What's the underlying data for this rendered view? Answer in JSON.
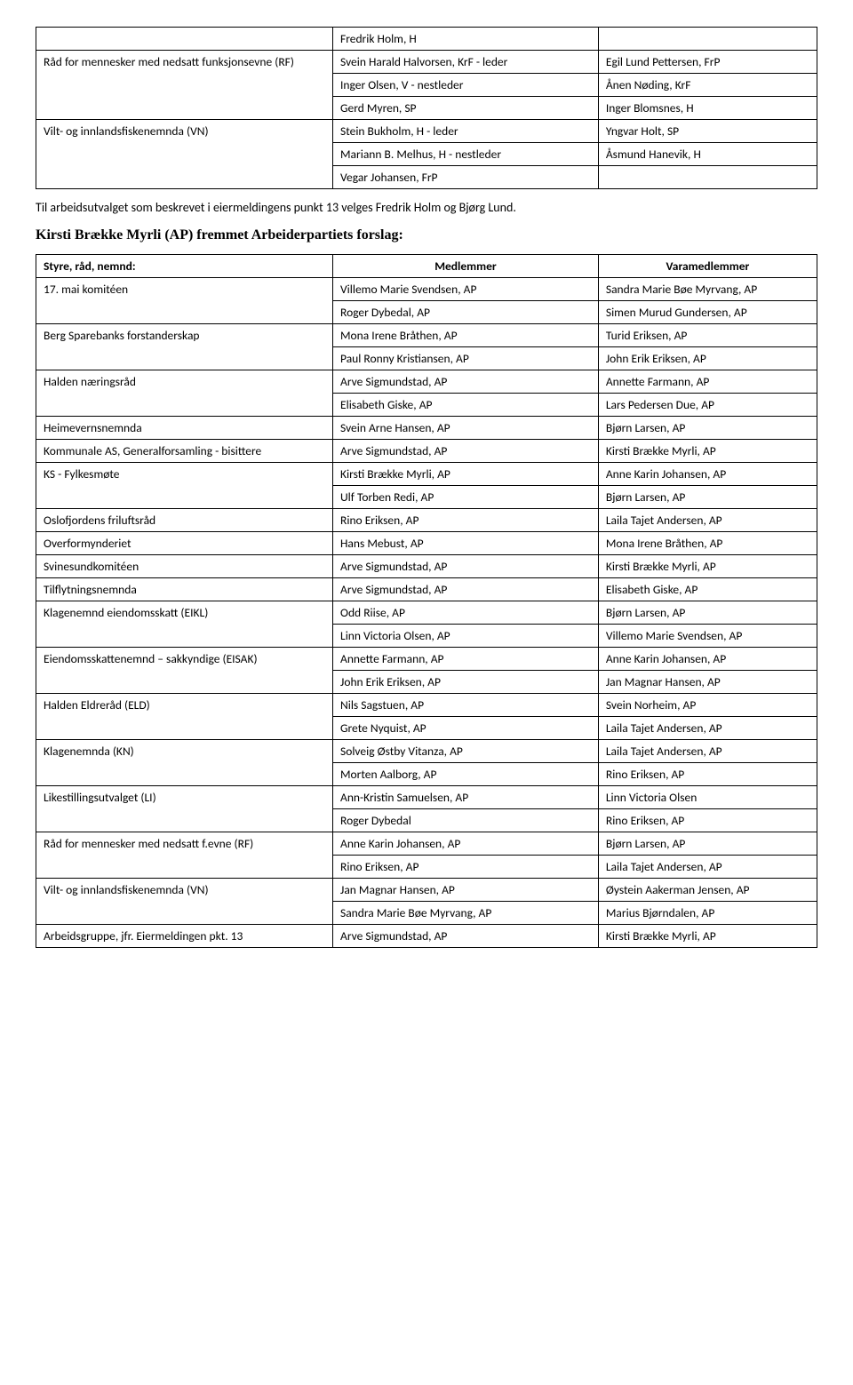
{
  "table1": {
    "rows": [
      {
        "c1": "",
        "c2": "Fredrik Holm, H",
        "c3": ""
      },
      {
        "c1": "Råd for mennesker med nedsatt funksjonsevne (RF)",
        "c1rows": 3,
        "c2": "Svein Harald Halvorsen, KrF - leder",
        "c3": "Egil Lund Pettersen, FrP"
      },
      {
        "c2": "Inger Olsen, V - nestleder",
        "c3": "Ånen Nøding, KrF"
      },
      {
        "c2": "Gerd Myren, SP",
        "c3": "Inger Blomsnes, H"
      },
      {
        "c1": "Vilt- og innlandsfiskenemnda (VN)",
        "c1rows": 3,
        "c2": "Stein Bukholm, H - leder",
        "c3": "Yngvar Holt, SP"
      },
      {
        "c2": "Mariann B. Melhus, H - nestleder",
        "c3": "Åsmund Hanevik, H"
      },
      {
        "c2": "Vegar Johansen, FrP",
        "c3": ""
      }
    ]
  },
  "midText": "Til arbeidsutvalget som beskrevet i eiermeldingens punkt 13 velges Fredrik Holm og Bjørg Lund.",
  "heading": "Kirsti Brække Myrli (AP) fremmet Arbeiderpartiets forslag:",
  "table2": {
    "header": {
      "c1": "Styre, råd, nemnd:",
      "c2": "Medlemmer",
      "c3": "Varamedlemmer"
    },
    "rows": [
      {
        "c1": "17. mai komitéen",
        "c1rows": 2,
        "c2": "Villemo Marie Svendsen, AP",
        "c3": "Sandra Marie Bøe Myrvang, AP"
      },
      {
        "c2": "Roger Dybedal, AP",
        "c3": "Simen Murud Gundersen, AP"
      },
      {
        "c1": "Berg Sparebanks forstanderskap",
        "c1rows": 2,
        "c2": "Mona Irene Bråthen, AP",
        "c3": "Turid Eriksen, AP"
      },
      {
        "c2": "Paul Ronny Kristiansen, AP",
        "c3": "John Erik Eriksen, AP"
      },
      {
        "c1": "Halden næringsråd",
        "c1rows": 2,
        "c2": "Arve Sigmundstad, AP",
        "c3": "Annette Farmann, AP"
      },
      {
        "c2": "Elisabeth Giske, AP",
        "c3": "Lars Pedersen Due, AP"
      },
      {
        "c1": "Heimevernsnemnda",
        "c2": "Svein Arne Hansen, AP",
        "c3": "Bjørn Larsen, AP"
      },
      {
        "c1": "Kommunale AS, Generalforsamling - bisittere",
        "c2": "Arve Sigmundstad, AP",
        "c3": "Kirsti Brække Myrli, AP"
      },
      {
        "c1": "KS - Fylkesmøte",
        "c1rows": 2,
        "c2": "Kirsti Brække Myrli, AP",
        "c3": "Anne Karin Johansen, AP"
      },
      {
        "c2": "Ulf Torben Redi, AP",
        "c3": "Bjørn Larsen, AP"
      },
      {
        "c1": "Oslofjordens friluftsråd",
        "c2": "Rino Eriksen, AP",
        "c3": "Laila Tajet Andersen, AP"
      },
      {
        "c1": "Overformynderiet",
        "c2": "Hans Mebust, AP",
        "c3": "Mona Irene Bråthen, AP"
      },
      {
        "c1": "Svinesundkomitéen",
        "c2": "Arve Sigmundstad, AP",
        "c3": "Kirsti Brække Myrli, AP"
      },
      {
        "c1": "Tilflytningsnemnda",
        "c2": "Arve Sigmundstad, AP",
        "c3": "Elisabeth Giske, AP"
      },
      {
        "c1": "Klagenemnd eiendomsskatt (EIKL)",
        "c1rows": 2,
        "c2": "Odd Riise, AP",
        "c3": "Bjørn Larsen, AP"
      },
      {
        "c2": "Linn Victoria Olsen, AP",
        "c3": "Villemo Marie Svendsen, AP"
      },
      {
        "c1": "Eiendomsskattenemnd – sakkyndige (EISAK)",
        "c1rows": 2,
        "c2": "Annette Farmann, AP",
        "c3": "Anne Karin Johansen, AP"
      },
      {
        "c2": "John Erik Eriksen, AP",
        "c3": "Jan Magnar Hansen, AP"
      },
      {
        "c1": "Halden Eldreråd (ELD)",
        "c1rows": 2,
        "c2": "Nils Sagstuen, AP",
        "c3": "Svein Norheim, AP"
      },
      {
        "c2": "Grete Nyquist, AP",
        "c3": "Laila Tajet Andersen, AP"
      },
      {
        "c1": "Klagenemnda (KN)",
        "c1rows": 2,
        "c2": "Solveig Østby Vitanza, AP",
        "c3": "Laila Tajet Andersen, AP"
      },
      {
        "c2": "Morten Aalborg, AP",
        "c3": "Rino Eriksen, AP"
      },
      {
        "c1": "Likestillingsutvalget (LI)",
        "c1rows": 2,
        "c2": "Ann-Kristin Samuelsen, AP",
        "c3": "Linn Victoria Olsen"
      },
      {
        "c2": "Roger Dybedal",
        "c3": "Rino Eriksen, AP"
      },
      {
        "c1": "Råd for mennesker med nedsatt f.evne (RF)",
        "c1rows": 2,
        "c2": "Anne Karin Johansen, AP",
        "c3": "Bjørn Larsen, AP"
      },
      {
        "c2": "Rino Eriksen, AP",
        "c3": "Laila Tajet Andersen, AP"
      },
      {
        "c1": "Vilt- og innlandsfiskenemnda (VN)",
        "c1rows": 2,
        "c2": "Jan Magnar Hansen, AP",
        "c3": "Øystein Aakerman Jensen, AP"
      },
      {
        "c2": "Sandra Marie Bøe Myrvang, AP",
        "c3": "Marius Bjørndalen, AP"
      },
      {
        "c1": "Arbeidsgruppe, jfr. Eiermeldingen pkt. 13",
        "c2": "Arve Sigmundstad, AP",
        "c3": "Kirsti Brække Myrli, AP"
      }
    ]
  }
}
